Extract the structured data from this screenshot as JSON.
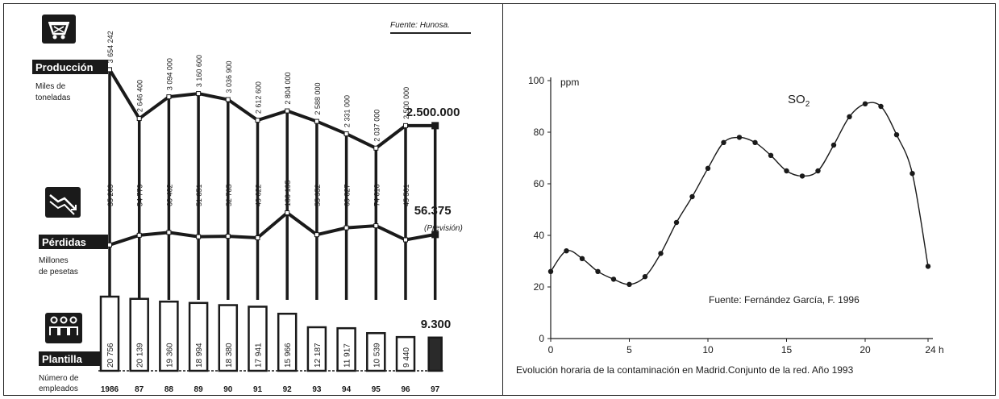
{
  "left_panel": {
    "source": "Fuente: Hunosa.",
    "years": [
      "1986",
      "87",
      "88",
      "89",
      "90",
      "91",
      "92",
      "93",
      "94",
      "95",
      "96",
      "97"
    ],
    "sections": {
      "production": {
        "title": "Producción",
        "unit_line1": "Miles de",
        "unit_line2": "toneladas",
        "icon": "mine-cart-icon"
      },
      "losses": {
        "title": "Pérdidas",
        "unit_line1": "Millones",
        "unit_line2": "de pesetas",
        "icon": "falling-chart-icon"
      },
      "staff": {
        "title": "Plantilla",
        "unit_line1": "Número de",
        "unit_line2": "empleados",
        "icon": "people-icon"
      }
    },
    "forecast_label": "(Previsión)"
  },
  "right_panel": {
    "caption": "Evolución horaria de la contaminación en Madrid.Conjunto de la red. Año 1993",
    "source": "Fuente: Fernández García, F. 1996"
  },
  "chart_data": [
    {
      "type": "line",
      "id": "produccion",
      "title": "Producción",
      "ylabel": "Miles de toneladas",
      "categories": [
        "1986",
        "87",
        "88",
        "89",
        "90",
        "91",
        "92",
        "93",
        "94",
        "95",
        "96",
        "97"
      ],
      "labels": [
        "3 654 242",
        "2 646 400",
        "3 094 000",
        "3 160 600",
        "3 036 900",
        "2 612 600",
        "2 804 000",
        "2 588 000",
        "2 331 000",
        "2 037 000",
        "2 500 000",
        "2.500.000"
      ],
      "values": [
        3654242,
        2646400,
        3094000,
        3160600,
        3036900,
        2612600,
        2804000,
        2588000,
        2331000,
        2037000,
        2500000,
        2500000
      ]
    },
    {
      "type": "line",
      "id": "perdidas",
      "title": "Pérdidas",
      "ylabel": "Millones de pesetas",
      "categories": [
        "1986",
        "87",
        "88",
        "89",
        "90",
        "91",
        "92",
        "93",
        "94",
        "95",
        "96",
        "97"
      ],
      "labels": [
        "35 269",
        "54 779",
        "60 462",
        "51 851",
        "52 785",
        "49 622",
        "100 195",
        "55 952",
        "69 827",
        "74 016",
        "45 561",
        "56.375"
      ],
      "values": [
        35269,
        54779,
        60462,
        51851,
        52785,
        49622,
        100195,
        55952,
        69827,
        74016,
        45561,
        56375
      ]
    },
    {
      "type": "bar",
      "id": "plantilla",
      "title": "Plantilla",
      "ylabel": "Número de empleados",
      "categories": [
        "1986",
        "87",
        "88",
        "89",
        "90",
        "91",
        "92",
        "93",
        "94",
        "95",
        "96",
        "97"
      ],
      "labels": [
        "20 756",
        "20 139",
        "19 360",
        "18 994",
        "18 380",
        "17 941",
        "15 966",
        "12 187",
        "11 917",
        "10 539",
        "9 440",
        "9.300"
      ],
      "values": [
        20756,
        20139,
        19360,
        18994,
        18380,
        17941,
        15966,
        12187,
        11917,
        10539,
        9440,
        9300
      ]
    },
    {
      "type": "line",
      "id": "so2",
      "title": "SO2",
      "title_main": "SO",
      "title_sub": "2",
      "ylabel": "ppm",
      "xunit": "h",
      "xlim": [
        0,
        24
      ],
      "ylim": [
        0,
        100
      ],
      "xticks": [
        0,
        5,
        10,
        15,
        20,
        24
      ],
      "xtick_labels": [
        "0",
        "5",
        "10",
        "15",
        "20",
        "24 h"
      ],
      "yticks": [
        0,
        20,
        40,
        60,
        80,
        100
      ],
      "x": [
        0,
        1,
        2,
        3,
        4,
        5,
        6,
        7,
        8,
        9,
        10,
        11,
        12,
        13,
        14,
        15,
        16,
        17,
        18,
        19,
        20,
        21,
        22,
        23,
        24
      ],
      "y": [
        26,
        34,
        31,
        26,
        23,
        21,
        24,
        33,
        45,
        55,
        66,
        76,
        78,
        76,
        71,
        65,
        63,
        65,
        75,
        86,
        91,
        90,
        79,
        64,
        28
      ]
    }
  ]
}
